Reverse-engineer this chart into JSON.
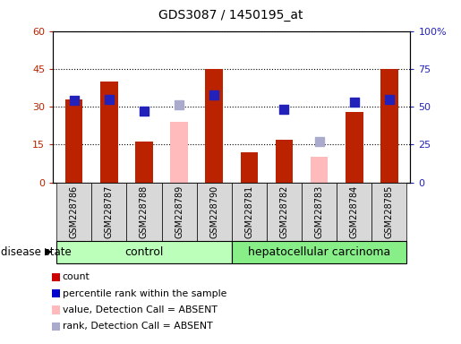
{
  "title": "GDS3087 / 1450195_at",
  "samples": [
    "GSM228786",
    "GSM228787",
    "GSM228788",
    "GSM228789",
    "GSM228790",
    "GSM228781",
    "GSM228782",
    "GSM228783",
    "GSM228784",
    "GSM228785"
  ],
  "count_values": [
    33,
    40,
    16,
    null,
    45,
    12,
    17,
    null,
    28,
    45
  ],
  "count_absent_values": [
    null,
    null,
    null,
    24,
    null,
    null,
    null,
    10,
    null,
    null
  ],
  "rank_values_pct": [
    54,
    55,
    47,
    null,
    58,
    null,
    48,
    null,
    53,
    55
  ],
  "rank_absent_values_pct": [
    null,
    null,
    null,
    51,
    null,
    null,
    null,
    27,
    null,
    null
  ],
  "count_color": "#bb2200",
  "count_absent_color": "#ffbbbb",
  "rank_color": "#2222bb",
  "rank_absent_color": "#aaaacc",
  "left_ylim": [
    0,
    60
  ],
  "right_ylim": [
    0,
    100
  ],
  "left_yticks": [
    0,
    15,
    30,
    45,
    60
  ],
  "right_yticks": [
    0,
    25,
    50,
    75,
    100
  ],
  "right_yticklabels": [
    "0",
    "25",
    "50",
    "75",
    "100%"
  ],
  "left_yticklabels": [
    "0",
    "15",
    "30",
    "45",
    "60"
  ],
  "group_control_label": "control",
  "group_disease_label": "hepatocellular carcinoma",
  "group_label_left": "disease state",
  "legend_labels": [
    "count",
    "percentile rank within the sample",
    "value, Detection Call = ABSENT",
    "rank, Detection Call = ABSENT"
  ],
  "legend_colors": [
    "#cc0000",
    "#0000cc",
    "#ffbbbb",
    "#aaaacc"
  ],
  "group_bg_control": "#bbffbb",
  "group_bg_disease": "#88ee88",
  "bar_width": 0.5,
  "dot_size": 45
}
